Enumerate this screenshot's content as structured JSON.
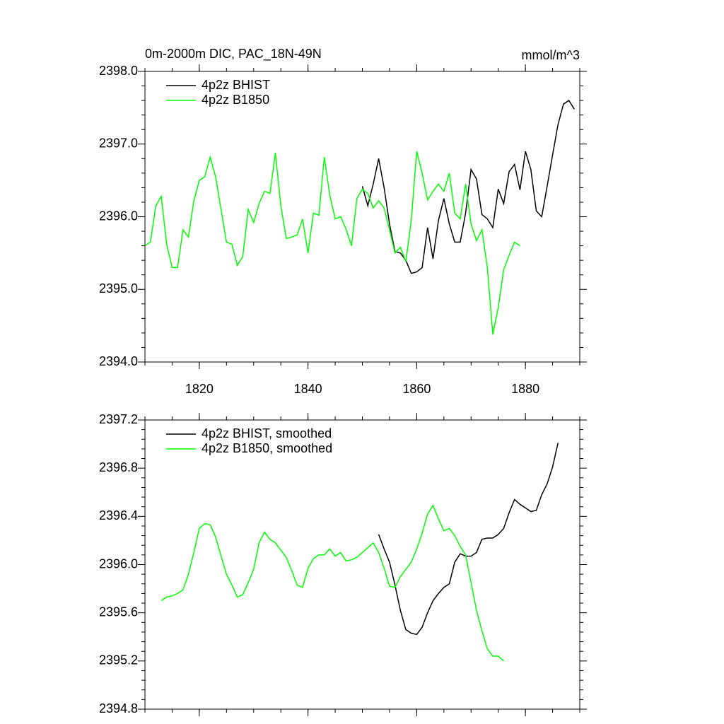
{
  "chart_data": [
    {
      "type": "line",
      "title": "0m-2000m DIC, PAC_18N-49N",
      "subtitle": "mmol/m^3",
      "xlim": [
        1810,
        1890
      ],
      "xticks": [
        1820,
        1840,
        1860,
        1880
      ],
      "xtick_labels": true,
      "ylim": [
        2394,
        2398
      ],
      "yticks": [
        {
          "value": 2394,
          "label": "2394.0"
        },
        {
          "value": 2395,
          "label": "2395.0"
        },
        {
          "value": 2396,
          "label": "2396.0"
        },
        {
          "value": 2397,
          "label": "2397.0"
        },
        {
          "value": 2398,
          "label": "2398.0"
        }
      ],
      "legend": "upper left",
      "series": [
        {
          "name": "4p2z BHIST",
          "color": "#000000",
          "x": [
            1850,
            1851,
            1852,
            1853,
            1854,
            1855,
            1856,
            1857,
            1858,
            1859,
            1860,
            1861,
            1862,
            1863,
            1864,
            1865,
            1866,
            1867,
            1868,
            1869,
            1870,
            1871,
            1872,
            1873,
            1874,
            1875,
            1876,
            1877,
            1878,
            1879,
            1880,
            1881,
            1882,
            1883,
            1884,
            1885,
            1886,
            1887,
            1888,
            1889
          ],
          "values": [
            2396.42,
            2396.15,
            2396.45,
            2396.8,
            2396.4,
            2395.9,
            2395.52,
            2395.5,
            2395.4,
            2395.22,
            2395.24,
            2395.3,
            2395.85,
            2395.42,
            2395.95,
            2396.25,
            2395.9,
            2395.65,
            2395.65,
            2396.05,
            2396.65,
            2396.52,
            2396.03,
            2395.97,
            2395.85,
            2396.38,
            2396.18,
            2396.62,
            2396.72,
            2396.37,
            2396.9,
            2396.65,
            2396.08,
            2396.0,
            2396.42,
            2396.85,
            2397.27,
            2397.55,
            2397.6,
            2397.48
          ]
        },
        {
          "name": "4p2z B1850",
          "color": "#00ff00",
          "x": [
            1810,
            1811,
            1812,
            1813,
            1814,
            1815,
            1816,
            1817,
            1818,
            1819,
            1820,
            1821,
            1822,
            1823,
            1824,
            1825,
            1826,
            1827,
            1828,
            1829,
            1830,
            1831,
            1832,
            1833,
            1834,
            1835,
            1836,
            1837,
            1838,
            1839,
            1840,
            1841,
            1842,
            1843,
            1844,
            1845,
            1846,
            1847,
            1848,
            1849,
            1850,
            1851,
            1852,
            1853,
            1854,
            1855,
            1856,
            1857,
            1858,
            1859,
            1860,
            1861,
            1862,
            1863,
            1864,
            1865,
            1866,
            1867,
            1868,
            1869,
            1870,
            1871,
            1872,
            1873,
            1874,
            1875,
            1876,
            1877,
            1878,
            1879
          ],
          "values": [
            2395.6,
            2395.65,
            2396.15,
            2396.28,
            2395.62,
            2395.3,
            2395.3,
            2395.82,
            2395.72,
            2396.22,
            2396.5,
            2396.55,
            2396.82,
            2396.55,
            2396.1,
            2395.65,
            2395.62,
            2395.33,
            2395.45,
            2396.1,
            2395.92,
            2396.18,
            2396.35,
            2396.32,
            2396.88,
            2396.15,
            2395.7,
            2395.72,
            2395.75,
            2395.97,
            2395.5,
            2396.05,
            2396.02,
            2396.82,
            2396.3,
            2395.97,
            2396.0,
            2395.83,
            2395.6,
            2396.25,
            2396.38,
            2396.32,
            2396.12,
            2396.22,
            2396.12,
            2395.82,
            2395.5,
            2395.58,
            2395.38,
            2395.95,
            2396.9,
            2396.6,
            2396.23,
            2396.35,
            2396.45,
            2396.35,
            2396.6,
            2396.05,
            2395.97,
            2396.45,
            2395.9,
            2395.67,
            2395.82,
            2395.3,
            2394.38,
            2394.75,
            2395.27,
            2395.47,
            2395.65,
            2395.6
          ]
        }
      ]
    },
    {
      "type": "line",
      "xlim": [
        1810,
        1890
      ],
      "xticks": [
        1820,
        1840,
        1860,
        1880
      ],
      "xtick_labels": false,
      "ylim": [
        2394.8,
        2397.2
      ],
      "yticks": [
        2394.8,
        2395.2,
        2395.6,
        {
          "value": 2396,
          "label": "2396.0"
        },
        2396.4,
        2396.8,
        2397.2
      ],
      "legend": "upper left",
      "series": [
        {
          "name": "4p2z BHIST, smoothed",
          "color": "#000000",
          "x": [
            1853,
            1854,
            1855,
            1856,
            1857,
            1858,
            1859,
            1860,
            1861,
            1862,
            1863,
            1864,
            1865,
            1866,
            1867,
            1868,
            1869,
            1870,
            1871,
            1872,
            1873,
            1874,
            1875,
            1876,
            1877,
            1878,
            1879,
            1880,
            1881,
            1882,
            1883,
            1884,
            1885,
            1886
          ],
          "values": [
            2396.25,
            2396.13,
            2396.02,
            2395.83,
            2395.62,
            2395.46,
            2395.43,
            2395.42,
            2395.48,
            2395.6,
            2395.7,
            2395.76,
            2395.81,
            2395.84,
            2396.02,
            2396.09,
            2396.07,
            2396.07,
            2396.1,
            2396.21,
            2396.22,
            2396.22,
            2396.25,
            2396.3,
            2396.43,
            2396.54,
            2396.5,
            2396.47,
            2396.44,
            2396.45,
            2396.58,
            2396.67,
            2396.81,
            2397.01
          ]
        },
        {
          "name": "4p2z B1850, smoothed",
          "color": "#00ff00",
          "x": [
            1813,
            1814,
            1815,
            1816,
            1817,
            1818,
            1819,
            1820,
            1821,
            1822,
            1823,
            1824,
            1825,
            1826,
            1827,
            1828,
            1829,
            1830,
            1831,
            1832,
            1833,
            1834,
            1835,
            1836,
            1837,
            1838,
            1839,
            1840,
            1841,
            1842,
            1843,
            1844,
            1845,
            1846,
            1847,
            1848,
            1849,
            1850,
            1851,
            1852,
            1853,
            1854,
            1855,
            1856,
            1857,
            1858,
            1859,
            1860,
            1861,
            1862,
            1863,
            1864,
            1865,
            1866,
            1867,
            1868,
            1869,
            1870,
            1871,
            1872,
            1873,
            1874,
            1875,
            1876
          ],
          "values": [
            2395.7,
            2395.73,
            2395.74,
            2395.76,
            2395.79,
            2395.92,
            2396.1,
            2396.3,
            2396.34,
            2396.33,
            2396.23,
            2396.07,
            2395.92,
            2395.83,
            2395.73,
            2395.75,
            2395.85,
            2395.96,
            2396.18,
            2396.27,
            2396.21,
            2396.18,
            2396.12,
            2396.06,
            2395.95,
            2395.83,
            2395.81,
            2395.97,
            2396.05,
            2396.08,
            2396.08,
            2396.13,
            2396.07,
            2396.1,
            2396.03,
            2396.04,
            2396.06,
            2396.1,
            2396.14,
            2396.18,
            2396.1,
            2395.97,
            2395.82,
            2395.81,
            2395.9,
            2395.96,
            2396.02,
            2396.13,
            2396.26,
            2396.42,
            2396.49,
            2396.38,
            2396.28,
            2396.3,
            2396.24,
            2396.15,
            2396.08,
            2395.85,
            2395.62,
            2395.45,
            2395.3,
            2395.24,
            2395.24,
            2395.2
          ]
        }
      ]
    }
  ]
}
